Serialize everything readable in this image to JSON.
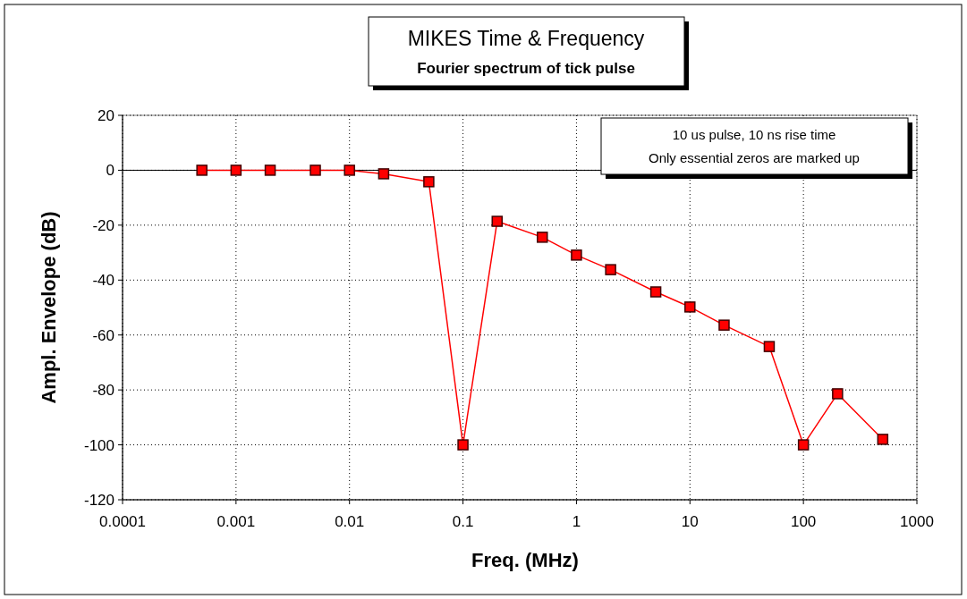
{
  "chart_data": {
    "type": "line",
    "title": "MIKES Time & Frequency",
    "subtitle": "Fourier spectrum of tick pulse",
    "xlabel": "Freq. (MHz)",
    "ylabel": "Ampl. Envelope (dB)",
    "annotations": [
      "10 us pulse, 10 ns rise time",
      "Only essential zeros are marked up"
    ],
    "x": [
      0.0005,
      0.001,
      0.002,
      0.005,
      0.01,
      0.02,
      0.05,
      0.1,
      0.2,
      0.5,
      1,
      2,
      5,
      10,
      20,
      50,
      100,
      200,
      500
    ],
    "series": [
      {
        "color": "#ff0000",
        "values": [
          0,
          0,
          0,
          0,
          0,
          -1.3,
          -4.2,
          -100,
          -18.6,
          -24.4,
          -30.9,
          -36.2,
          -44.3,
          -49.8,
          -56.4,
          -64.2,
          -100,
          -81.4,
          -98
        ]
      }
    ],
    "log": "x",
    "xlim": [
      0.0001,
      1000
    ],
    "xticks": [
      0.0001,
      0.001,
      0.01,
      0.1,
      1,
      10,
      100,
      1000
    ],
    "ylim": [
      -120,
      20
    ],
    "yticks": [
      -120,
      -100,
      -80,
      -60,
      -40,
      -20,
      0,
      20
    ],
    "grid": true,
    "marker": "square",
    "line_style": "solid",
    "ref_lines": [
      {
        "axis": "y",
        "value": 0,
        "color": "#000000"
      }
    ]
  }
}
